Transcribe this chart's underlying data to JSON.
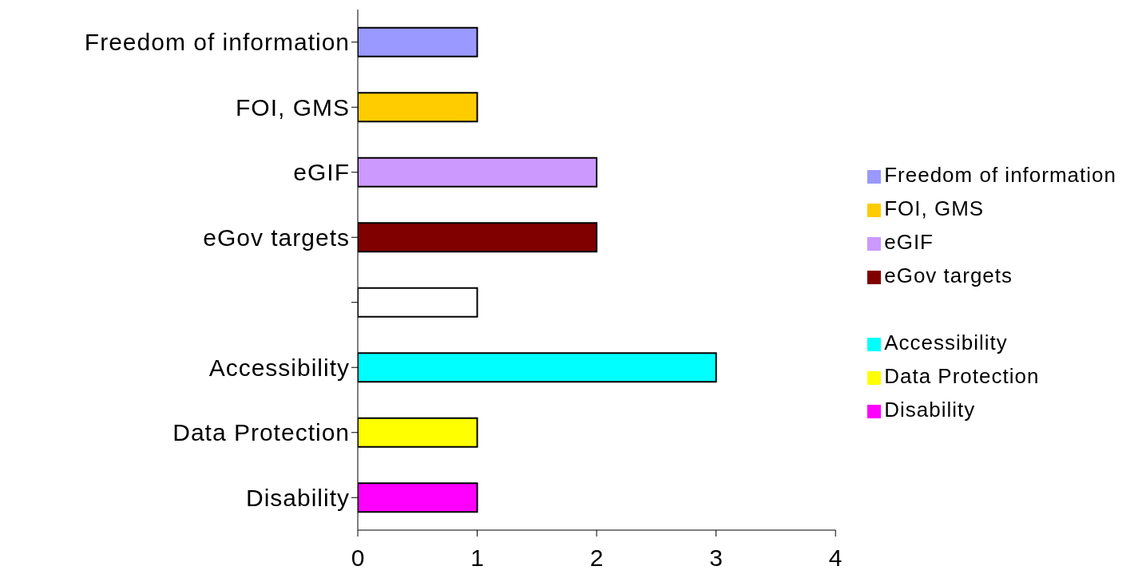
{
  "chart_data": {
    "type": "bar",
    "orientation": "horizontal",
    "stacked": true,
    "categories": [
      "Freedom of information",
      "FOI, GMS",
      "eGIF",
      "eGov targets",
      null,
      "Accessibility",
      "Data Protection",
      "Disability"
    ],
    "series": [
      {
        "name": "Freedom of information",
        "color": "#9999ff",
        "values": [
          1,
          null,
          null,
          null,
          null,
          null,
          null,
          null
        ]
      },
      {
        "name": "FOI, GMS",
        "color": "#ffcc00",
        "values": [
          null,
          1,
          null,
          null,
          null,
          null,
          null,
          null
        ]
      },
      {
        "name": "eGIF",
        "color": "#cc99ff",
        "values": [
          null,
          null,
          2,
          null,
          null,
          null,
          null,
          null
        ]
      },
      {
        "name": "eGov targets",
        "color": "#800000",
        "values": [
          null,
          null,
          null,
          2,
          null,
          null,
          null,
          null
        ]
      },
      {
        "color": "#ffffff",
        "values": [
          null,
          null,
          null,
          null,
          1,
          null,
          null,
          null
        ]
      },
      {
        "name": "Accessibility",
        "color": "#00ffff",
        "values": [
          null,
          null,
          null,
          null,
          null,
          3,
          null,
          null
        ]
      },
      {
        "name": "Data Protection",
        "color": "#ffff00",
        "values": [
          null,
          null,
          null,
          null,
          null,
          null,
          1,
          null
        ]
      },
      {
        "name": "Disability",
        "color": "#ff00ff",
        "values": [
          null,
          null,
          null,
          null,
          null,
          null,
          null,
          1
        ]
      }
    ],
    "xlim": [
      0,
      4
    ],
    "xticks": [
      0,
      1,
      2,
      3,
      4
    ],
    "grid": false,
    "legend": "right"
  }
}
